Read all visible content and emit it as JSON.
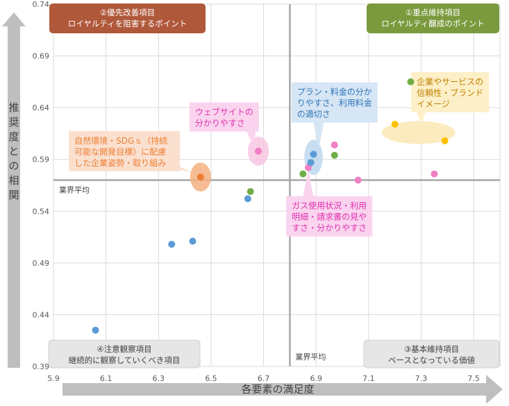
{
  "chart_data": {
    "type": "scatter",
    "xlabel": "各要素の満足度",
    "ylabel": "推奨度との相関",
    "xlim": [
      5.9,
      7.6
    ],
    "ylim": [
      0.39,
      0.74
    ],
    "x_ticks": [
      "5.9",
      "6.1",
      "6.3",
      "6.5",
      "6.7",
      "6.9",
      "7.1",
      "7.3",
      "7.5"
    ],
    "y_ticks": [
      "0.39",
      "0.44",
      "0.49",
      "0.54",
      "0.59",
      "0.64",
      "0.69",
      "0.74"
    ],
    "grid": true,
    "average_x": 6.8,
    "average_y": 0.57,
    "average_x_label": "業界平均",
    "average_y_label": "業界平均",
    "quadrants": [
      {
        "line1": "①重点維持項目",
        "line2": "ロイヤルティ醸成のポイント",
        "color": "#7a9a3d"
      },
      {
        "line1": "②優先改善項目",
        "line2": "ロイヤルティを阻害するポイント",
        "color": "#b0583a"
      },
      {
        "line1": "③基本維持項目",
        "line2": "ベースとなっている価値",
        "color": "#e6e6e6"
      },
      {
        "line1": "④注意観察項目",
        "line2": "継続的に観察していくべき項目",
        "color": "#e6e6e6"
      }
    ],
    "points": [
      {
        "x": 6.06,
        "y": 0.425,
        "color": "#5b9bd5"
      },
      {
        "x": 6.35,
        "y": 0.508,
        "color": "#5b9bd5"
      },
      {
        "x": 6.43,
        "y": 0.511,
        "color": "#5b9bd5"
      },
      {
        "x": 6.64,
        "y": 0.552,
        "color": "#5b9bd5"
      },
      {
        "x": 6.65,
        "y": 0.559,
        "color": "#70ad47"
      },
      {
        "x": 6.46,
        "y": 0.573,
        "color": "#ed7d31"
      },
      {
        "x": 6.68,
        "y": 0.598,
        "color": "#f07fc4"
      },
      {
        "x": 6.85,
        "y": 0.576,
        "color": "#70ad47"
      },
      {
        "x": 6.87,
        "y": 0.582,
        "color": "#f07fc4"
      },
      {
        "x": 6.88,
        "y": 0.587,
        "color": "#5b9bd5"
      },
      {
        "x": 6.89,
        "y": 0.595,
        "color": "#5b9bd5"
      },
      {
        "x": 6.97,
        "y": 0.594,
        "color": "#70ad47"
      },
      {
        "x": 6.97,
        "y": 0.604,
        "color": "#f07fc4"
      },
      {
        "x": 7.06,
        "y": 0.57,
        "color": "#f07fc4"
      },
      {
        "x": 7.2,
        "y": 0.624,
        "color": "#ffc000"
      },
      {
        "x": 7.26,
        "y": 0.665,
        "color": "#70ad47"
      },
      {
        "x": 7.35,
        "y": 0.576,
        "color": "#f07fc4"
      },
      {
        "x": 7.39,
        "y": 0.608,
        "color": "#ffc000"
      }
    ],
    "highlights": [
      {
        "cx": 6.46,
        "cy": 0.573,
        "rx": 0.04,
        "ry": 0.014,
        "color": "#f4b183"
      },
      {
        "cx": 6.68,
        "cy": 0.598,
        "rx": 0.04,
        "ry": 0.014,
        "color": "#f8c5e3"
      },
      {
        "cx": 6.89,
        "cy": 0.592,
        "rx": 0.035,
        "ry": 0.017,
        "color": "#bdd7ee"
      },
      {
        "cx": 7.29,
        "cy": 0.616,
        "rx": 0.14,
        "ry": 0.011,
        "color": "#fae8b3"
      }
    ],
    "annotations": [
      {
        "lines": [
          "自然環境・SDGｓ（持続",
          "可能な開発目標）に配慮",
          "した企業姿勢・取り組み"
        ],
        "color": "#ed7d31",
        "fill": "#fbe0cf",
        "tx": 6.17,
        "ty": 0.598,
        "ax": 6.43,
        "ay": 0.577
      },
      {
        "lines": [
          "ウェブサイトの",
          "分かりやすさ"
        ],
        "color": "#e032b0",
        "fill": "#fad4ee",
        "tx": 6.55,
        "ty": 0.631,
        "ax": 6.66,
        "ay": 0.603
      },
      {
        "lines": [
          "プラン・料金の分か",
          "りやすさ、利用料金",
          "の適切さ"
        ],
        "color": "#2e75b6",
        "fill": "#d6e6f5",
        "tx": 6.97,
        "ty": 0.645,
        "ax": 6.91,
        "ay": 0.6
      },
      {
        "lines": [
          "企業やサービスの",
          "信頼性・ブランド",
          "イメージ"
        ],
        "color": "#c08000",
        "fill": "#fdf0c8",
        "tx": 7.41,
        "ty": 0.655,
        "ax": 7.3,
        "ay": 0.623
      },
      {
        "lines": [
          "ガス使用状況・利用",
          "明細・請求書の見や",
          "すさ・分かりやすさ"
        ],
        "color": "#e032b0",
        "fill": "#fad4ee",
        "tx": 6.95,
        "ty": 0.535,
        "ax": 6.87,
        "ay": 0.58
      }
    ]
  }
}
